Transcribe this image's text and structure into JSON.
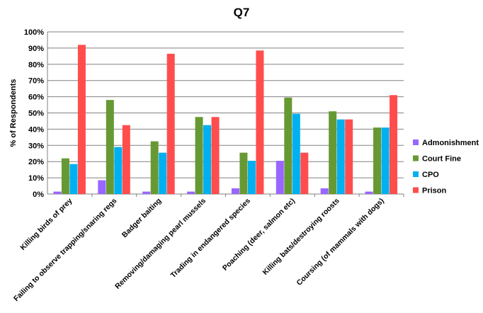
{
  "chart_data": {
    "type": "bar",
    "title": "Q7",
    "ylabel": "% of Respondents",
    "xlabel": "",
    "ylim": [
      0,
      100
    ],
    "y_ticks": [
      "0%",
      "10%",
      "20%",
      "30%",
      "40%",
      "50%",
      "60%",
      "70%",
      "80%",
      "90%",
      "100%"
    ],
    "grid": true,
    "legend_position": "right",
    "categories": [
      "Killing birds of prey",
      "Failing to observe trapping/snaring regs",
      "Badger baiting",
      "Removing/damaging pearl mussels",
      "Trading in endangered species",
      "Poaching (deer, salmon etc)",
      "Killing bats/destroying roosts",
      "Coursing (of mammals with dogs)"
    ],
    "series": [
      {
        "name": "Admonishment",
        "color": "#9966ff",
        "values": [
          1.5,
          8.5,
          1.5,
          1.5,
          3.5,
          20.5,
          3.5,
          1.5
        ]
      },
      {
        "name": "Court Fine",
        "color": "#669933",
        "values": [
          22,
          58,
          32.5,
          47.5,
          25.5,
          59.5,
          51,
          41
        ]
      },
      {
        "name": "CPO",
        "color": "#00b0f0",
        "values": [
          18.5,
          29,
          25.5,
          42.5,
          20.5,
          49.5,
          46,
          41
        ]
      },
      {
        "name": "Prison",
        "color": "#ff4d4d",
        "values": [
          92,
          42.5,
          86.5,
          47.5,
          88.5,
          25.5,
          46,
          61
        ]
      }
    ]
  }
}
